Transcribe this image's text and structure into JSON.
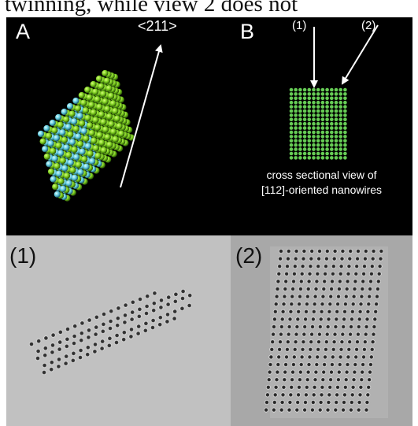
{
  "caption": "twinning, while view 2 does not",
  "panel_a": {
    "letter": "A",
    "direction_label": "<211>",
    "colors": {
      "green": "#7acb1e",
      "cyan": "#5ec9dd"
    }
  },
  "panel_b": {
    "letter": "B",
    "view_labels": [
      "(1)",
      "(2)"
    ],
    "description_lines": [
      "cross sectional view of",
      "[112]-oriented nanowires"
    ],
    "colors": {
      "atom": "#66cc55"
    }
  },
  "panel_1": {
    "label": "(1)"
  },
  "panel_2": {
    "label": "(2)"
  }
}
